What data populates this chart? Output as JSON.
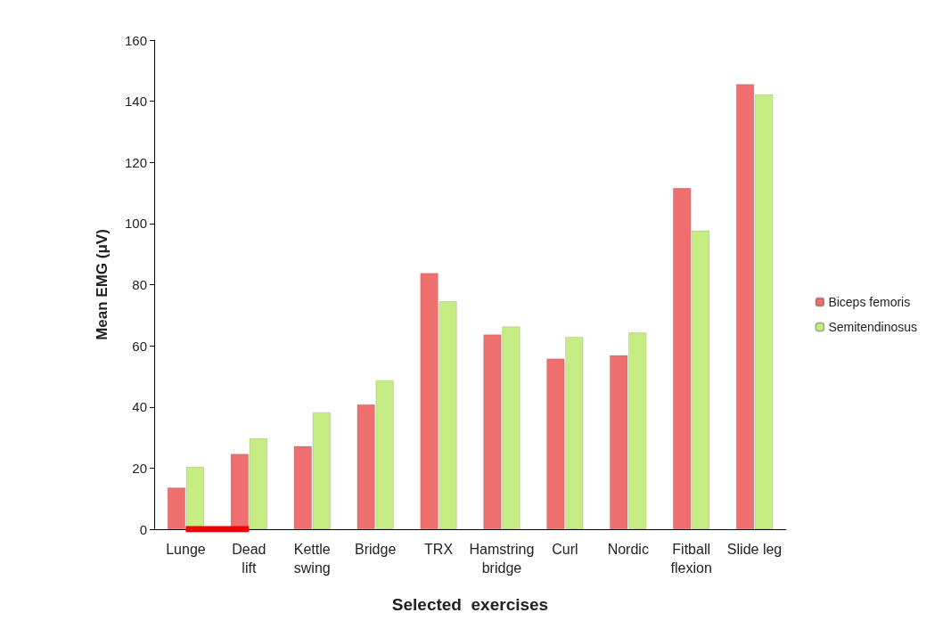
{
  "chart_data": {
    "type": "bar",
    "xlabel": "Selected  exercises",
    "ylabel": "Mean EMG (μV)",
    "categories": [
      "Lunge",
      "Dead\nlift",
      "Kettle\nswing",
      "Bridge",
      "TRX",
      "Hamstring\nbridge",
      "Curl",
      "Nordic",
      "Fitball\nflexion",
      "Slide leg"
    ],
    "series": [
      {
        "name": "Biceps femoris",
        "color": "#ef6f6f",
        "values": [
          13.6,
          24.6,
          27.2,
          40.8,
          83.8,
          63.7,
          55.8,
          56.9,
          111.6,
          145.6
        ]
      },
      {
        "name": "Semitendinosus",
        "color": "#c6ec84",
        "values": [
          20.4,
          29.7,
          38.2,
          48.7,
          74.5,
          66.3,
          62.9,
          64.3,
          97.7,
          142.2
        ]
      },
      {
        "type": "line",
        "color": "#f00000",
        "values": [
          0,
          0,
          null,
          null,
          null,
          null,
          null,
          null,
          null,
          null
        ]
      }
    ],
    "ylim": [
      0,
      160
    ],
    "yticks": [
      0,
      20,
      40,
      60,
      80,
      100,
      120,
      140,
      160
    ],
    "grid": false,
    "legend": "right"
  }
}
